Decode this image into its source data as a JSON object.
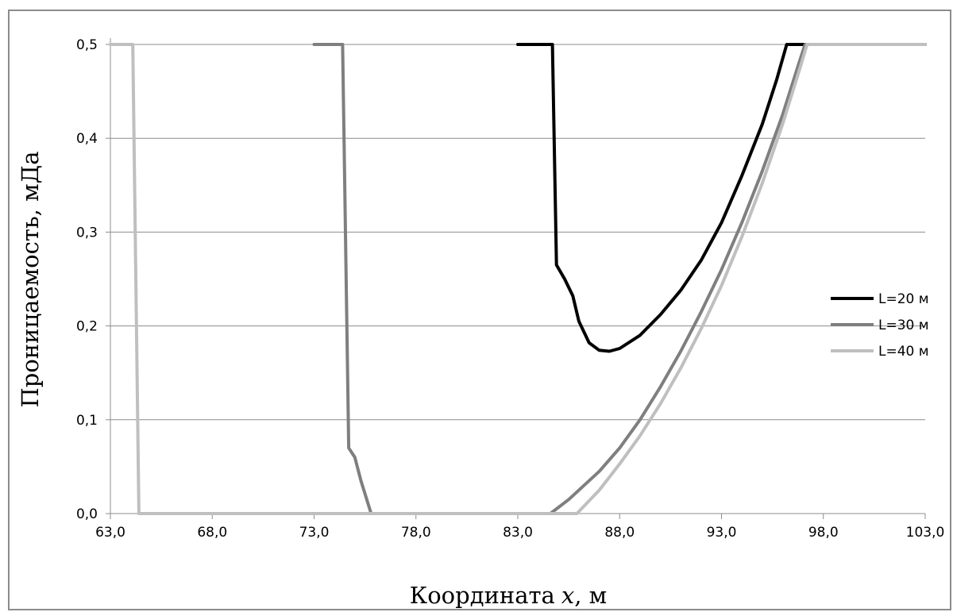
{
  "chart_data": {
    "type": "line",
    "title": "",
    "xlabel": "Координата x, м",
    "xlabel_prefix": "Координата",
    "xlabel_var": "x",
    "xlabel_unit": ", м",
    "ylabel": "Проницаемость, мДа",
    "xlim": [
      63.0,
      103.0
    ],
    "ylim": [
      0.0,
      0.5
    ],
    "x_ticks": [
      63,
      68,
      73,
      78,
      83,
      88,
      93,
      98,
      103
    ],
    "x_tick_labels": [
      "63,0",
      "68,0",
      "73,0",
      "78,0",
      "83,0",
      "88,0",
      "93,0",
      "98,0",
      "103,0"
    ],
    "y_ticks": [
      0,
      0.1,
      0.2,
      0.3,
      0.4,
      0.5
    ],
    "y_tick_labels": [
      "0,0",
      "0,1",
      "0,2",
      "0,3",
      "0,4",
      "0,5"
    ],
    "grid": "horizontal",
    "legend_position": "right",
    "series": [
      {
        "name": "L=20 м",
        "color": "#000000",
        "points": [
          [
            83.0,
            0.5
          ],
          [
            84.7,
            0.5
          ],
          [
            84.9,
            0.265
          ],
          [
            85.3,
            0.25
          ],
          [
            85.7,
            0.232
          ],
          [
            86.0,
            0.205
          ],
          [
            86.5,
            0.182
          ],
          [
            87.0,
            0.174
          ],
          [
            87.5,
            0.173
          ],
          [
            88.0,
            0.176
          ],
          [
            89.0,
            0.19
          ],
          [
            90.0,
            0.212
          ],
          [
            91.0,
            0.238
          ],
          [
            92.0,
            0.27
          ],
          [
            93.0,
            0.31
          ],
          [
            94.0,
            0.36
          ],
          [
            95.0,
            0.415
          ],
          [
            95.7,
            0.462
          ],
          [
            96.2,
            0.5
          ],
          [
            97.0,
            0.5
          ],
          [
            103.0,
            0.5
          ]
        ]
      },
      {
        "name": "L=30 м",
        "color": "#7f7f7f",
        "points": [
          [
            73.0,
            0.5
          ],
          [
            74.4,
            0.5
          ],
          [
            74.7,
            0.07
          ],
          [
            75.0,
            0.06
          ],
          [
            75.3,
            0.035
          ],
          [
            75.8,
            0.0
          ],
          [
            77.0,
            0.0
          ],
          [
            82.0,
            0.0
          ],
          [
            84.6,
            0.0
          ],
          [
            85.5,
            0.015
          ],
          [
            87.0,
            0.045
          ],
          [
            88.0,
            0.07
          ],
          [
            89.0,
            0.1
          ],
          [
            90.0,
            0.135
          ],
          [
            91.0,
            0.173
          ],
          [
            92.0,
            0.215
          ],
          [
            93.0,
            0.26
          ],
          [
            94.0,
            0.31
          ],
          [
            95.0,
            0.365
          ],
          [
            96.0,
            0.425
          ],
          [
            96.8,
            0.48
          ],
          [
            97.1,
            0.5
          ],
          [
            103.0,
            0.5
          ]
        ]
      },
      {
        "name": "L=40 м",
        "color": "#bfbfbf",
        "points": [
          [
            63.0,
            0.5
          ],
          [
            64.1,
            0.5
          ],
          [
            64.4,
            0.0
          ],
          [
            65.0,
            0.0
          ],
          [
            70.0,
            0.0
          ],
          [
            80.0,
            0.0
          ],
          [
            85.9,
            0.0
          ],
          [
            87.0,
            0.025
          ],
          [
            88.0,
            0.053
          ],
          [
            89.0,
            0.083
          ],
          [
            90.0,
            0.117
          ],
          [
            91.0,
            0.155
          ],
          [
            92.0,
            0.197
          ],
          [
            93.0,
            0.243
          ],
          [
            94.0,
            0.295
          ],
          [
            95.0,
            0.352
          ],
          [
            96.0,
            0.415
          ],
          [
            96.9,
            0.478
          ],
          [
            97.2,
            0.5
          ],
          [
            103.0,
            0.5
          ]
        ]
      }
    ]
  }
}
